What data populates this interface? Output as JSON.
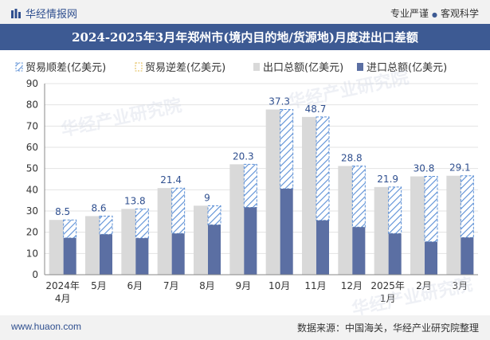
{
  "header": {
    "brand": "华经情报网",
    "tagline_a": "专业严谨",
    "tagline_sep": "●",
    "tagline_b": "客观科学"
  },
  "footer": {
    "site": "www.huaon.com",
    "source": "数据来源：中国海关，华经产业研究院整理"
  },
  "colors": {
    "total": "#d9d9d9",
    "import": "#5b6fa3",
    "surplus_stripe": "#5b8fd6",
    "title_bg": "#3d5a93"
  },
  "chart_data": {
    "type": "bar",
    "title": "2024-2025年3月年郑州市(境内目的地/货源地)月度进出口差额",
    "categories": [
      "2024年4月",
      "5月",
      "6月",
      "7月",
      "8月",
      "9月",
      "10月",
      "11月",
      "12月",
      "2025年1月",
      "2月",
      "3月"
    ],
    "ylim": [
      0,
      90
    ],
    "yticks": [
      0,
      10,
      20,
      30,
      40,
      50,
      60,
      70,
      80,
      90
    ],
    "legend_position": "top",
    "series": [
      {
        "name": "贸易顺差(亿美元)",
        "values": [
          8.5,
          8.6,
          13.8,
          21.4,
          9,
          20.3,
          37.3,
          48.7,
          28.8,
          21.9,
          30.8,
          29.1
        ]
      },
      {
        "name": "贸易逆差(亿美元)",
        "values": [
          0,
          0,
          0,
          0,
          0,
          0,
          0,
          0,
          0,
          0,
          0,
          0
        ]
      },
      {
        "name": "出口总额(亿美元)",
        "values": [
          25.8,
          27.6,
          31.0,
          40.8,
          32.5,
          52.0,
          77.8,
          74.3,
          51.2,
          41.3,
          46.3,
          46.6
        ]
      },
      {
        "name": "进口总额(亿美元)",
        "values": [
          17.3,
          19.0,
          17.2,
          19.4,
          23.5,
          31.7,
          40.5,
          25.6,
          22.4,
          19.4,
          15.5,
          17.5
        ]
      }
    ],
    "data_labels": [
      "8.5",
      "8.6",
      "13.8",
      "21.4",
      "9",
      "20.3",
      "37.3",
      "48.7",
      "28.8",
      "21.9",
      "30.8",
      "29.1"
    ]
  }
}
